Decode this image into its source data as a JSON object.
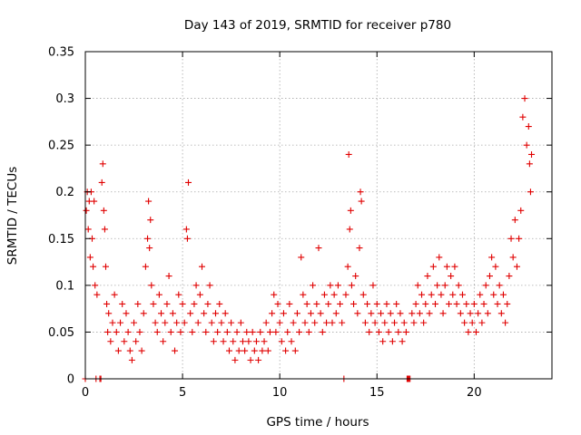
{
  "chart_data": {
    "type": "scatter",
    "title": "Day 143 of 2019, SRMTID for receiver p780",
    "xlabel": "GPS time / hours",
    "ylabel": "SRMTID / TECUs",
    "xlim": [
      0,
      24
    ],
    "ylim": [
      0,
      0.35
    ],
    "xticks": [
      0,
      5,
      10,
      15,
      20
    ],
    "xtick_labels": [
      "0",
      "5",
      "10",
      "15",
      "20"
    ],
    "yticks": [
      0,
      0.05,
      0.1,
      0.15,
      0.2,
      0.25,
      0.3,
      0.35
    ],
    "ytick_labels": [
      "0",
      "0.05",
      "0.1",
      "0.15",
      "0.2",
      "0.25",
      "0.3",
      "0.35"
    ],
    "grid": true,
    "marker": "+",
    "color": "#e00000",
    "series": [
      {
        "name": "SRMTID",
        "points": [
          [
            0.0,
            0.0
          ],
          [
            0.05,
            0.18
          ],
          [
            0.1,
            0.2
          ],
          [
            0.15,
            0.16
          ],
          [
            0.2,
            0.19
          ],
          [
            0.25,
            0.13
          ],
          [
            0.3,
            0.2
          ],
          [
            0.35,
            0.15
          ],
          [
            0.4,
            0.12
          ],
          [
            0.45,
            0.19
          ],
          [
            0.5,
            0.1
          ],
          [
            0.55,
            0.0
          ],
          [
            0.6,
            0.09
          ],
          [
            0.75,
            0.0
          ],
          [
            0.8,
            0.0
          ],
          [
            0.85,
            0.21
          ],
          [
            0.9,
            0.23
          ],
          [
            0.95,
            0.18
          ],
          [
            1.0,
            0.16
          ],
          [
            1.05,
            0.12
          ],
          [
            1.1,
            0.08
          ],
          [
            1.15,
            0.05
          ],
          [
            1.2,
            0.07
          ],
          [
            1.3,
            0.04
          ],
          [
            1.4,
            0.06
          ],
          [
            1.5,
            0.09
          ],
          [
            1.6,
            0.05
          ],
          [
            1.7,
            0.03
          ],
          [
            1.8,
            0.06
          ],
          [
            1.9,
            0.08
          ],
          [
            2.0,
            0.04
          ],
          [
            2.1,
            0.07
          ],
          [
            2.2,
            0.05
          ],
          [
            2.3,
            0.03
          ],
          [
            2.4,
            0.02
          ],
          [
            2.5,
            0.06
          ],
          [
            2.6,
            0.04
          ],
          [
            2.7,
            0.08
          ],
          [
            2.8,
            0.05
          ],
          [
            2.9,
            0.03
          ],
          [
            3.0,
            0.07
          ],
          [
            3.1,
            0.12
          ],
          [
            3.2,
            0.15
          ],
          [
            3.25,
            0.19
          ],
          [
            3.3,
            0.14
          ],
          [
            3.35,
            0.17
          ],
          [
            3.4,
            0.1
          ],
          [
            3.5,
            0.08
          ],
          [
            3.6,
            0.06
          ],
          [
            3.7,
            0.05
          ],
          [
            3.8,
            0.09
          ],
          [
            3.9,
            0.07
          ],
          [
            4.0,
            0.04
          ],
          [
            4.1,
            0.06
          ],
          [
            4.2,
            0.08
          ],
          [
            4.3,
            0.11
          ],
          [
            4.4,
            0.05
          ],
          [
            4.5,
            0.07
          ],
          [
            4.6,
            0.03
          ],
          [
            4.7,
            0.06
          ],
          [
            4.8,
            0.09
          ],
          [
            4.9,
            0.05
          ],
          [
            5.0,
            0.08
          ],
          [
            5.1,
            0.06
          ],
          [
            5.2,
            0.16
          ],
          [
            5.25,
            0.15
          ],
          [
            5.3,
            0.21
          ],
          [
            5.4,
            0.07
          ],
          [
            5.5,
            0.05
          ],
          [
            5.6,
            0.08
          ],
          [
            5.7,
            0.1
          ],
          [
            5.8,
            0.06
          ],
          [
            5.9,
            0.09
          ],
          [
            6.0,
            0.12
          ],
          [
            6.1,
            0.07
          ],
          [
            6.2,
            0.05
          ],
          [
            6.3,
            0.08
          ],
          [
            6.4,
            0.1
          ],
          [
            6.5,
            0.06
          ],
          [
            6.6,
            0.04
          ],
          [
            6.7,
            0.07
          ],
          [
            6.8,
            0.05
          ],
          [
            6.9,
            0.08
          ],
          [
            7.0,
            0.06
          ],
          [
            7.1,
            0.04
          ],
          [
            7.2,
            0.07
          ],
          [
            7.3,
            0.05
          ],
          [
            7.4,
            0.03
          ],
          [
            7.5,
            0.06
          ],
          [
            7.6,
            0.04
          ],
          [
            7.7,
            0.02
          ],
          [
            7.8,
            0.05
          ],
          [
            7.9,
            0.03
          ],
          [
            8.0,
            0.06
          ],
          [
            8.1,
            0.04
          ],
          [
            8.2,
            0.03
          ],
          [
            8.3,
            0.05
          ],
          [
            8.4,
            0.04
          ],
          [
            8.5,
            0.02
          ],
          [
            8.6,
            0.05
          ],
          [
            8.7,
            0.03
          ],
          [
            8.8,
            0.04
          ],
          [
            8.9,
            0.02
          ],
          [
            9.0,
            0.05
          ],
          [
            9.1,
            0.03
          ],
          [
            9.2,
            0.04
          ],
          [
            9.3,
            0.06
          ],
          [
            9.4,
            0.03
          ],
          [
            9.5,
            0.05
          ],
          [
            9.6,
            0.07
          ],
          [
            9.7,
            0.09
          ],
          [
            9.8,
            0.05
          ],
          [
            9.9,
            0.08
          ],
          [
            10.0,
            0.06
          ],
          [
            10.1,
            0.04
          ],
          [
            10.2,
            0.07
          ],
          [
            10.3,
            0.03
          ],
          [
            10.4,
            0.05
          ],
          [
            10.5,
            0.08
          ],
          [
            10.6,
            0.04
          ],
          [
            10.7,
            0.06
          ],
          [
            10.8,
            0.03
          ],
          [
            10.9,
            0.07
          ],
          [
            11.0,
            0.05
          ],
          [
            11.1,
            0.13
          ],
          [
            11.2,
            0.09
          ],
          [
            11.3,
            0.06
          ],
          [
            11.4,
            0.08
          ],
          [
            11.5,
            0.05
          ],
          [
            11.6,
            0.07
          ],
          [
            11.7,
            0.1
          ],
          [
            11.8,
            0.06
          ],
          [
            11.9,
            0.08
          ],
          [
            12.0,
            0.14
          ],
          [
            12.1,
            0.07
          ],
          [
            12.2,
            0.05
          ],
          [
            12.3,
            0.09
          ],
          [
            12.4,
            0.06
          ],
          [
            12.5,
            0.08
          ],
          [
            12.6,
            0.1
          ],
          [
            12.7,
            0.06
          ],
          [
            12.8,
            0.09
          ],
          [
            12.9,
            0.07
          ],
          [
            13.0,
            0.1
          ],
          [
            13.1,
            0.08
          ],
          [
            13.2,
            0.06
          ],
          [
            13.3,
            0.0
          ],
          [
            13.4,
            0.09
          ],
          [
            13.5,
            0.12
          ],
          [
            13.55,
            0.24
          ],
          [
            13.6,
            0.16
          ],
          [
            13.65,
            0.18
          ],
          [
            13.7,
            0.1
          ],
          [
            13.8,
            0.08
          ],
          [
            13.9,
            0.11
          ],
          [
            14.0,
            0.07
          ],
          [
            14.1,
            0.14
          ],
          [
            14.15,
            0.2
          ],
          [
            14.2,
            0.19
          ],
          [
            14.3,
            0.09
          ],
          [
            14.4,
            0.06
          ],
          [
            14.5,
            0.08
          ],
          [
            14.6,
            0.05
          ],
          [
            14.7,
            0.07
          ],
          [
            14.8,
            0.1
          ],
          [
            14.9,
            0.06
          ],
          [
            15.0,
            0.08
          ],
          [
            15.1,
            0.05
          ],
          [
            15.2,
            0.07
          ],
          [
            15.3,
            0.04
          ],
          [
            15.4,
            0.06
          ],
          [
            15.5,
            0.08
          ],
          [
            15.6,
            0.05
          ],
          [
            15.7,
            0.07
          ],
          [
            15.8,
            0.04
          ],
          [
            15.9,
            0.06
          ],
          [
            16.0,
            0.08
          ],
          [
            16.1,
            0.05
          ],
          [
            16.2,
            0.07
          ],
          [
            16.3,
            0.04
          ],
          [
            16.4,
            0.06
          ],
          [
            16.5,
            0.05
          ],
          [
            16.55,
            0.0
          ],
          [
            16.6,
            0.0
          ],
          [
            16.65,
            0.0
          ],
          [
            16.7,
            0.0
          ],
          [
            16.8,
            0.07
          ],
          [
            16.9,
            0.06
          ],
          [
            17.0,
            0.08
          ],
          [
            17.1,
            0.1
          ],
          [
            17.2,
            0.07
          ],
          [
            17.3,
            0.09
          ],
          [
            17.4,
            0.06
          ],
          [
            17.5,
            0.08
          ],
          [
            17.6,
            0.11
          ],
          [
            17.7,
            0.07
          ],
          [
            17.8,
            0.09
          ],
          [
            17.9,
            0.12
          ],
          [
            18.0,
            0.08
          ],
          [
            18.1,
            0.1
          ],
          [
            18.2,
            0.13
          ],
          [
            18.3,
            0.09
          ],
          [
            18.4,
            0.07
          ],
          [
            18.5,
            0.1
          ],
          [
            18.6,
            0.12
          ],
          [
            18.7,
            0.08
          ],
          [
            18.8,
            0.11
          ],
          [
            18.9,
            0.09
          ],
          [
            19.0,
            0.12
          ],
          [
            19.1,
            0.08
          ],
          [
            19.2,
            0.1
          ],
          [
            19.3,
            0.07
          ],
          [
            19.4,
            0.09
          ],
          [
            19.5,
            0.06
          ],
          [
            19.6,
            0.08
          ],
          [
            19.7,
            0.05
          ],
          [
            19.8,
            0.07
          ],
          [
            19.9,
            0.06
          ],
          [
            20.0,
            0.08
          ],
          [
            20.1,
            0.05
          ],
          [
            20.2,
            0.07
          ],
          [
            20.3,
            0.09
          ],
          [
            20.4,
            0.06
          ],
          [
            20.5,
            0.08
          ],
          [
            20.6,
            0.1
          ],
          [
            20.7,
            0.07
          ],
          [
            20.8,
            0.11
          ],
          [
            20.9,
            0.13
          ],
          [
            21.0,
            0.09
          ],
          [
            21.1,
            0.12
          ],
          [
            21.2,
            0.08
          ],
          [
            21.3,
            0.1
          ],
          [
            21.4,
            0.07
          ],
          [
            21.5,
            0.09
          ],
          [
            21.6,
            0.06
          ],
          [
            21.7,
            0.08
          ],
          [
            21.8,
            0.11
          ],
          [
            21.9,
            0.15
          ],
          [
            22.0,
            0.13
          ],
          [
            22.1,
            0.17
          ],
          [
            22.2,
            0.12
          ],
          [
            22.3,
            0.15
          ],
          [
            22.4,
            0.18
          ],
          [
            22.5,
            0.28
          ],
          [
            22.6,
            0.3
          ],
          [
            22.7,
            0.25
          ],
          [
            22.8,
            0.27
          ],
          [
            22.85,
            0.23
          ],
          [
            22.9,
            0.2
          ],
          [
            22.95,
            0.24
          ]
        ]
      }
    ]
  }
}
